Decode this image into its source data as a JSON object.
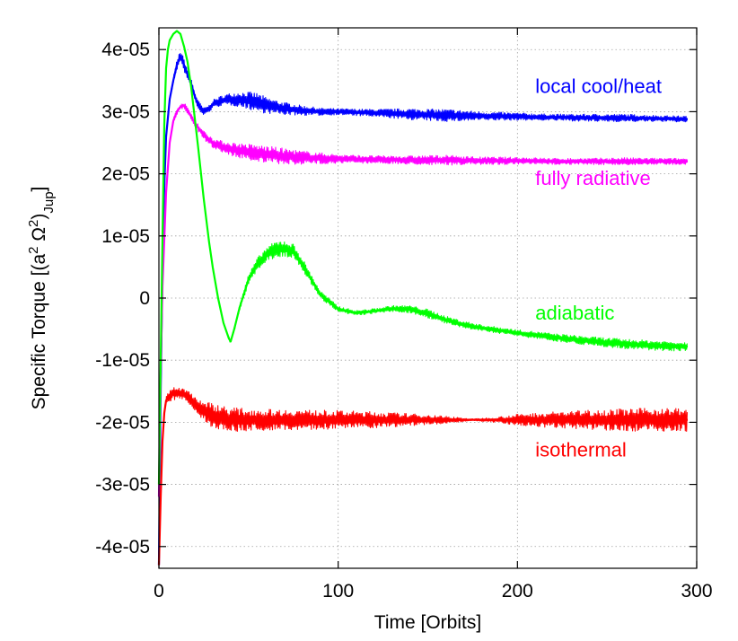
{
  "chart_data": {
    "type": "line",
    "title": "",
    "xlabel": "Time [Orbits]",
    "ylabel": {
      "main": "Specific Torque [(a",
      "sup1": "2",
      "mid": " Ω",
      "sup2": "2",
      "close": ")",
      "sub": "Jup",
      "end": "]"
    },
    "xlim": [
      0,
      300
    ],
    "ylim": [
      -4.35e-05,
      4.35e-05
    ],
    "grid": true,
    "xticks": [
      {
        "value": 0,
        "label": "0"
      },
      {
        "value": 100,
        "label": "100"
      },
      {
        "value": 200,
        "label": "200"
      },
      {
        "value": 300,
        "label": "300"
      }
    ],
    "yticks": [
      {
        "value": 4e-05,
        "label": "4e-05"
      },
      {
        "value": 3e-05,
        "label": "3e-05"
      },
      {
        "value": 2e-05,
        "label": "2e-05"
      },
      {
        "value": 1e-05,
        "label": "1e-05"
      },
      {
        "value": 0,
        "label": "0"
      },
      {
        "value": -1e-05,
        "label": "-1e-05"
      },
      {
        "value": -2e-05,
        "label": "-2e-05"
      },
      {
        "value": -3e-05,
        "label": "-3e-05"
      },
      {
        "value": -4e-05,
        "label": "-4e-05"
      }
    ],
    "series": [
      {
        "name": "local cool/heat",
        "color": "#0000ff",
        "label_position": [
          210,
          3.3e-05
        ],
        "x": [
          0,
          1,
          2,
          3,
          4,
          6,
          8,
          10,
          12,
          14,
          16,
          18,
          20,
          22,
          25,
          28,
          30,
          35,
          40,
          45,
          50,
          55,
          60,
          70,
          80,
          90,
          100,
          120,
          140,
          160,
          180,
          200,
          220,
          240,
          260,
          280,
          295
        ],
        "y": [
          -4.3e-05,
          -1.5e-05,
          5e-06,
          1.8e-05,
          2.6e-05,
          3.2e-05,
          3.5e-05,
          3.75e-05,
          3.9e-05,
          3.75e-05,
          3.6e-05,
          3.45e-05,
          3.25e-05,
          3.1e-05,
          3e-05,
          3.05e-05,
          3.12e-05,
          3.18e-05,
          3.2e-05,
          3.2e-05,
          3.18e-05,
          3.15e-05,
          3.1e-05,
          3.05e-05,
          3.02e-05,
          3e-05,
          3e-05,
          2.98e-05,
          2.96e-05,
          2.94e-05,
          2.93e-05,
          2.92e-05,
          2.91e-05,
          2.9e-05,
          2.9e-05,
          2.89e-05,
          2.88e-05
        ],
        "noise": [
          0,
          0,
          0,
          0,
          0,
          3e-07,
          5e-07,
          8e-07,
          1e-06,
          1e-06,
          1e-06,
          1e-06,
          8e-07,
          8e-07,
          6e-07,
          6e-07,
          7e-07,
          8e-07,
          1e-06,
          1.2e-06,
          1.4e-06,
          1.5e-06,
          1.3e-06,
          1e-06,
          8e-07,
          6e-07,
          5e-07,
          6e-07,
          9e-07,
          1e-06,
          7e-07,
          6e-07,
          5e-07,
          6e-07,
          6e-07,
          5e-07,
          5e-07
        ]
      },
      {
        "name": "fully radiative",
        "color": "#ff00ff",
        "label_position": [
          210,
          1.82e-05
        ],
        "x": [
          0,
          1,
          2,
          4,
          6,
          8,
          10,
          12,
          14,
          16,
          18,
          20,
          25,
          30,
          35,
          40,
          50,
          60,
          70,
          80,
          90,
          100,
          120,
          140,
          160,
          180,
          200,
          220,
          240,
          260,
          280,
          295
        ],
        "y": [
          -3.2e-05,
          -1.2e-05,
          2e-06,
          1.7e-05,
          2.5e-05,
          2.85e-05,
          3e-05,
          3.08e-05,
          3.1e-05,
          3.02e-05,
          2.92e-05,
          2.82e-05,
          2.62e-05,
          2.5e-05,
          2.44e-05,
          2.4e-05,
          2.35e-05,
          2.31e-05,
          2.28e-05,
          2.26e-05,
          2.25e-05,
          2.24e-05,
          2.23e-05,
          2.22e-05,
          2.22e-05,
          2.21e-05,
          2.21e-05,
          2.2e-05,
          2.2e-05,
          2.2e-05,
          2.2e-05,
          2.2e-05
        ],
        "noise": [
          0,
          0,
          0,
          0,
          3e-07,
          4e-07,
          5e-07,
          5e-07,
          5e-07,
          5e-07,
          6e-07,
          6e-07,
          7e-07,
          8e-07,
          9e-07,
          1.1e-06,
          1.3e-06,
          1.4e-06,
          1.3e-06,
          1.1e-06,
          9e-07,
          7e-07,
          6e-07,
          7e-07,
          8e-07,
          6e-07,
          6e-07,
          5e-07,
          5e-07,
          6e-07,
          5e-07,
          5e-07
        ]
      },
      {
        "name": "adiabatic",
        "color": "#00ff00",
        "label_position": [
          210,
          -3.5e-06
        ],
        "x": [
          0,
          1,
          2,
          3,
          4,
          5,
          6,
          8,
          10,
          12,
          14,
          16,
          18,
          20,
          22,
          25,
          28,
          30,
          33,
          36,
          39,
          40,
          42,
          45,
          50,
          55,
          60,
          65,
          70,
          75,
          80,
          85,
          90,
          100,
          110,
          120,
          130,
          140,
          150,
          160,
          170,
          180,
          190,
          200,
          220,
          240,
          260,
          280,
          295
        ],
        "y": [
          -3e-05,
          -1e-05,
          1e-05,
          2.8e-05,
          3.7e-05,
          4e-05,
          4.15e-05,
          4.25e-05,
          4.3e-05,
          4.25e-05,
          4.05e-05,
          3.8e-05,
          3.4e-05,
          2.9e-05,
          2.4e-05,
          1.6e-05,
          9e-06,
          5e-06,
          0,
          -4e-06,
          -6.5e-06,
          -7e-06,
          -5e-06,
          -1.5e-06,
          3e-06,
          5.5e-06,
          7e-06,
          7.8e-06,
          8e-06,
          7.5e-06,
          5.5e-06,
          3e-06,
          6e-07,
          -1.8e-06,
          -2.4e-06,
          -2.1e-06,
          -1.7e-06,
          -1.8e-06,
          -2.5e-06,
          -3.5e-06,
          -4.3e-06,
          -4.8e-06,
          -5.2e-06,
          -5.6e-06,
          -6.3e-06,
          -6.9e-06,
          -7.4e-06,
          -7.7e-06,
          -7.8e-06
        ],
        "noise": [
          0,
          0,
          0,
          0,
          0,
          0,
          0,
          0,
          0,
          0,
          0,
          0,
          0,
          0,
          0,
          0,
          0,
          0,
          0,
          0,
          3e-07,
          3e-07,
          4e-07,
          6e-07,
          8e-07,
          1e-06,
          1.2e-06,
          1.3e-06,
          1.3e-06,
          1.2e-06,
          1e-06,
          8e-07,
          6e-07,
          5e-07,
          4e-07,
          4e-07,
          5e-07,
          6e-07,
          7e-07,
          6e-07,
          6e-07,
          5e-07,
          5e-07,
          5e-07,
          6e-07,
          7e-07,
          8e-07,
          8e-07,
          7e-07
        ]
      },
      {
        "name": "isothermal",
        "color": "#ff0000",
        "label_position": [
          210,
          -2.55e-05
        ],
        "x": [
          0,
          1,
          2,
          3,
          4,
          6,
          8,
          10,
          12,
          14,
          16,
          18,
          20,
          24,
          28,
          32,
          36,
          40,
          45,
          50,
          60,
          80,
          100,
          120,
          140,
          160,
          175,
          190,
          200,
          220,
          240,
          260,
          280,
          295
        ],
        "y": [
          -4.3e-05,
          -3.2e-05,
          -2.3e-05,
          -1.85e-05,
          -1.65e-05,
          -1.57e-05,
          -1.54e-05,
          -1.53e-05,
          -1.54e-05,
          -1.55e-05,
          -1.58e-05,
          -1.63e-05,
          -1.7e-05,
          -1.8e-05,
          -1.87e-05,
          -1.9e-05,
          -1.93e-05,
          -1.95e-05,
          -1.96e-05,
          -1.96e-05,
          -1.96e-05,
          -1.96e-05,
          -1.96e-05,
          -1.96e-05,
          -1.96e-05,
          -1.96e-05,
          -1.96e-05,
          -1.96e-05,
          -1.96e-05,
          -1.96e-05,
          -1.96e-05,
          -1.96e-05,
          -1.96e-05,
          -1.96e-05
        ],
        "noise": [
          0,
          0,
          0,
          5e-07,
          1e-06,
          1e-06,
          1e-06,
          1e-06,
          1e-06,
          1e-06,
          1e-06,
          1.1e-06,
          1.2e-06,
          1.6e-06,
          1.9e-06,
          2e-06,
          2e-06,
          1.9e-06,
          1.9e-06,
          1.8e-06,
          1.7e-06,
          1.6e-06,
          1.5e-06,
          1.3e-06,
          1e-06,
          6e-07,
          1.5e-07,
          5e-07,
          9e-07,
          1.3e-06,
          1.6e-06,
          1.8e-06,
          1.9e-06,
          1.9e-06
        ]
      }
    ]
  }
}
